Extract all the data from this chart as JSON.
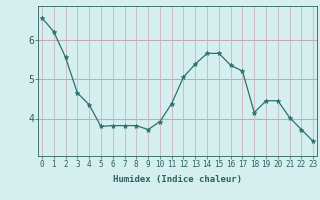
{
  "x": [
    0,
    1,
    2,
    3,
    4,
    5,
    6,
    7,
    8,
    9,
    10,
    11,
    12,
    13,
    14,
    15,
    16,
    17,
    18,
    19,
    20,
    21,
    22,
    23
  ],
  "y": [
    6.55,
    6.2,
    5.55,
    4.65,
    4.35,
    3.8,
    3.82,
    3.82,
    3.82,
    3.72,
    3.92,
    4.38,
    5.05,
    5.38,
    5.65,
    5.65,
    5.35,
    5.2,
    4.15,
    4.45,
    4.45,
    4.02,
    3.72,
    3.42
  ],
  "line_color": "#2d7070",
  "marker": "*",
  "marker_size": 3.5,
  "bg_color": "#d5efef",
  "grid_color_v": "#c8a8b8",
  "grid_color_h": "#c8a8b8",
  "xlabel": "Humidex (Indice chaleur)",
  "yticks": [
    4,
    5,
    6
  ],
  "xticks": [
    0,
    1,
    2,
    3,
    4,
    5,
    6,
    7,
    8,
    9,
    10,
    11,
    12,
    13,
    14,
    15,
    16,
    17,
    18,
    19,
    20,
    21,
    22,
    23
  ],
  "xlim": [
    -0.3,
    23.3
  ],
  "ylim": [
    3.05,
    6.85
  ],
  "tick_color": "#2d6060",
  "label_fontsize": 6.5,
  "tick_fontsize": 5.5,
  "linewidth": 0.9
}
